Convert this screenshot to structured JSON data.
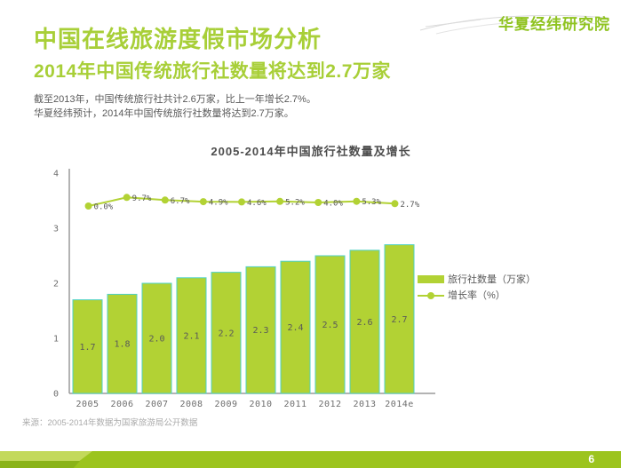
{
  "logo": {
    "text": "华夏经纬研究院"
  },
  "header": {
    "title": "中国在线旅游度假市场分析",
    "subtitle": "2014年中国传统旅行社数量将达到2.7万家",
    "body_line1": "截至2013年，中国传统旅行社共计2.6万家，比上一年增长2.7%。",
    "body_line2": "华夏经纬预计，2014年中国传统旅行社数量将达到2.7万家。"
  },
  "chart_data": {
    "type": "bar",
    "title": "2005-2014年中国旅行社数量及增长",
    "categories": [
      "2005",
      "2006",
      "2007",
      "2008",
      "2009",
      "2010",
      "2011",
      "2012",
      "2013",
      "2014e"
    ],
    "series": [
      {
        "name": "旅行社数量（万家）",
        "type": "bar",
        "values": [
          1.7,
          1.8,
          2.0,
          2.1,
          2.2,
          2.3,
          2.4,
          2.5,
          2.6,
          2.7
        ],
        "labels": [
          "1.7",
          "1.8",
          "2.0",
          "2.1",
          "2.2",
          "2.3",
          "2.4",
          "2.5",
          "2.6",
          "2.7"
        ]
      },
      {
        "name": "增长率（%）",
        "type": "line",
        "values": [
          0.0,
          9.7,
          6.7,
          4.9,
          4.6,
          5.2,
          4.0,
          5.3,
          2.7
        ],
        "labels": [
          "0.0%",
          "9.7%",
          "6.7%",
          "4.9%",
          "4.6%",
          "5.2%",
          "4.0%",
          "5.3%",
          "2.7%"
        ]
      }
    ],
    "ylim": [
      0,
      4
    ],
    "yticks": [
      "0",
      "1",
      "2",
      "3",
      "4"
    ],
    "grid": false,
    "legend_position": "right"
  },
  "source": "来源：2005-2014年数据为国家旅游局公开数据",
  "footer": {
    "page": "6"
  },
  "colors": {
    "green_text": "#a8cf38",
    "logo_green": "#8fc320",
    "bar_fill": "#b2d234",
    "bar_border": "#4fd1c5",
    "line_color": "#b2d234",
    "axis_color": "#9a9a9a",
    "label_gray": "#595959",
    "tick_gray": "#6e6e6e",
    "footer_green": "#9cc41e"
  }
}
